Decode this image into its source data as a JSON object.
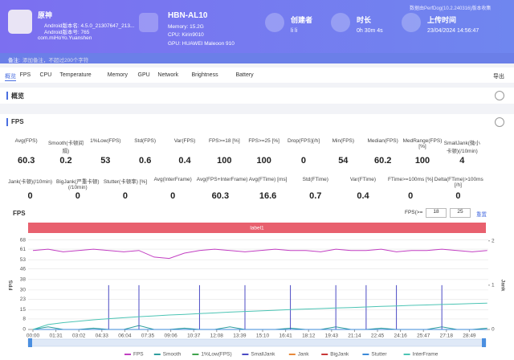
{
  "header": {
    "app_name": "原神",
    "android_version_name": "Android版本名: 4.5.0_21307647_213...",
    "android_version_code": "Android版本号: 765",
    "package": "com.miHoYo.Yuanshen",
    "device": "HBN-AL10",
    "memory": "Memory: 15.2G",
    "cpu": "CPU: Kirin9010",
    "gpu": "GPU: HUAWEI Maleoon 910",
    "creator_label": "创建者",
    "creator": "li li",
    "duration_label": "时长",
    "duration": "0h 30m 4s",
    "upload_label": "上传时间",
    "upload_time": "23/04/2024 14:56:47",
    "collected_by": "数据由PerfDog(10.2.240316)版本收集",
    "note_label": "备注:",
    "note_placeholder": "添加备注，不超过200个字符"
  },
  "tabs": [
    "概览",
    "FPS",
    "CPU",
    "Temperature",
    "Memory",
    "GPU",
    "Network",
    "Brightness",
    "Battery"
  ],
  "export": "导出",
  "sections": {
    "overview": "概览",
    "fps": "FPS"
  },
  "stats": [
    [
      {
        "label": "Avg(FPS)",
        "value": 60.3
      },
      {
        "label": "Smooth(卡顿间隔)",
        "value": 0.2
      },
      {
        "label": "1%Low(FPS)",
        "value": 53
      },
      {
        "label": "Std(FPS)",
        "value": 0.6
      },
      {
        "label": "Var(FPS)",
        "value": 0.4
      },
      {
        "label": "FPS>=18 [%]",
        "value": 100
      },
      {
        "label": "FPS>=25 [%]",
        "value": 100
      },
      {
        "label": "Drop(FPS)[/h]",
        "value": 0
      },
      {
        "label": "Min(FPS)",
        "value": 54
      },
      {
        "label": "Median(FPS)",
        "value": 60.2
      },
      {
        "label": "MedRange(FPS)[%]",
        "value": 100
      },
      {
        "label": "SmallJank(微小卡顿)(/10min)",
        "value": 4
      }
    ],
    [
      {
        "label": "Jank(卡顿)(/10min)",
        "value": 0
      },
      {
        "label": "BigJank(严重卡顿)(/10min)",
        "value": 0
      },
      {
        "label": "Stutter(卡顿率) [%]",
        "value": 0
      },
      {
        "label": "Avg(InterFrame)",
        "value": 0
      },
      {
        "label": "Avg(FPS+InterFrame)",
        "value": 60.3
      },
      {
        "label": "Avg(FTime) [ms]",
        "value": 16.6
      },
      {
        "label": "Std(FTime)",
        "value": 0.7
      },
      {
        "label": "Var(FTime)",
        "value": 0.4
      },
      {
        "label": "FTime>=100ms [%]",
        "value": 0
      },
      {
        "label": "Delta(FTime)>100ms [/h]",
        "value": 0
      }
    ]
  ],
  "fps_threshold": {
    "label": "FPS(>=",
    "values": [
      18,
      25
    ],
    "reset": "重置"
  },
  "chart_data": {
    "type": "line",
    "title": "FPS",
    "label": "label1",
    "y_label": "FPS",
    "y2_label": "Jank",
    "grid": true,
    "x": [
      0,
      60,
      120,
      180,
      240,
      300,
      360,
      420,
      480,
      540,
      600,
      660,
      720,
      780,
      840,
      900,
      960,
      1020,
      1080,
      1140,
      1200,
      1260,
      1320,
      1380,
      1440,
      1500,
      1560,
      1620,
      1680,
      1740,
      1800
    ],
    "xlim": [
      0,
      1804
    ],
    "xticks": [
      {
        "value": 0,
        "label": "00:00"
      },
      {
        "value": 91,
        "label": "01:31"
      },
      {
        "value": 182,
        "label": "03:02"
      },
      {
        "value": 273,
        "label": "04:33"
      },
      {
        "value": 364,
        "label": "06:04"
      },
      {
        "value": 455,
        "label": "07:35"
      },
      {
        "value": 546,
        "label": "09:06"
      },
      {
        "value": 637,
        "label": "10:37"
      },
      {
        "value": 728,
        "label": "12:08"
      },
      {
        "value": 819,
        "label": "13:39"
      },
      {
        "value": 910,
        "label": "15:10"
      },
      {
        "value": 1001,
        "label": "16:41"
      },
      {
        "value": 1092,
        "label": "18:12"
      },
      {
        "value": 1183,
        "label": "19:43"
      },
      {
        "value": 1274,
        "label": "21:14"
      },
      {
        "value": 1365,
        "label": "22:45"
      },
      {
        "value": 1456,
        "label": "24:16"
      },
      {
        "value": 1547,
        "label": "25:47"
      },
      {
        "value": 1638,
        "label": "27:18"
      },
      {
        "value": 1729,
        "label": "28:49"
      }
    ],
    "ylim": [
      0,
      69
    ],
    "yticks": [
      0,
      8,
      15,
      23,
      30,
      38,
      46,
      53,
      61,
      68
    ],
    "y2lim": [
      0,
      2.05
    ],
    "y2ticks": [
      0,
      1,
      2
    ],
    "series": [
      {
        "name": "FPS",
        "color": "#c23fc2",
        "values": [
          60,
          61,
          59,
          60,
          61,
          60,
          59,
          60,
          55,
          54,
          58,
          60,
          61,
          60,
          59,
          60,
          61,
          60,
          60,
          59,
          61,
          60,
          60,
          61,
          59,
          60,
          60,
          61,
          60,
          59,
          60
        ]
      },
      {
        "name": "Smooth",
        "color": "#2f9e9e",
        "values": [
          0,
          2,
          0,
          0,
          1,
          0,
          0,
          3,
          0,
          0,
          1,
          0,
          0,
          2,
          0,
          0,
          0,
          1,
          0,
          0,
          2,
          0,
          0,
          1,
          0,
          0,
          0,
          2,
          0,
          0,
          1
        ]
      },
      {
        "name": "1%Low(FPS)",
        "color": "#3fa34d",
        "values": [
          null,
          null,
          null,
          null,
          null,
          null,
          null,
          null,
          null,
          null,
          null,
          null,
          null,
          null,
          null,
          null,
          null,
          null,
          null,
          null,
          null,
          null,
          null,
          null,
          null,
          null,
          null,
          null,
          null,
          null,
          null
        ]
      },
      {
        "name": "SmallJank",
        "color": "#4b4bc4",
        "axis": "y2",
        "values": [
          0,
          0,
          0,
          0,
          0,
          1,
          0,
          1,
          0,
          0,
          0,
          1,
          0,
          0,
          1,
          0,
          0,
          1,
          0,
          0,
          1,
          0,
          1,
          0,
          1,
          0,
          0,
          1,
          0,
          0,
          0
        ]
      },
      {
        "name": "Jank",
        "color": "#e8893a",
        "axis": "y2",
        "values": [
          0,
          0,
          0,
          0,
          0,
          0,
          0,
          0,
          0,
          0,
          0,
          0,
          0,
          0,
          0,
          0,
          0,
          0,
          0,
          0,
          0,
          0,
          0,
          0,
          0,
          0,
          0,
          0,
          0,
          0,
          0
        ]
      },
      {
        "name": "BigJank",
        "color": "#c83737",
        "axis": "y2",
        "values": [
          0,
          0,
          0,
          0,
          0,
          0,
          0,
          0,
          0,
          0,
          0,
          0,
          0,
          0,
          0,
          0,
          0,
          0,
          0,
          0,
          0,
          0,
          0,
          0,
          0,
          0,
          0,
          0,
          0,
          0,
          0
        ]
      },
      {
        "name": "Stutter",
        "color": "#3b8ad8",
        "axis": "y2",
        "values": [
          0,
          0,
          0,
          0,
          0,
          0,
          0,
          0,
          0,
          0,
          0,
          0,
          0,
          0,
          0,
          0,
          0,
          0,
          0,
          0,
          0,
          0,
          0,
          0,
          0,
          0,
          0,
          0,
          0,
          0,
          0
        ]
      },
      {
        "name": "InterFrame",
        "color": "#4cc4b4",
        "values": [
          0,
          3.7,
          5.2,
          6.3,
          7.3,
          8.2,
          8.9,
          9.7,
          10.3,
          11,
          11.5,
          12.1,
          12.6,
          13.2,
          13.7,
          14.1,
          14.6,
          15.1,
          15.5,
          15.9,
          16.3,
          16.7,
          17.1,
          17.5,
          17.9,
          18.3,
          18.6,
          19,
          19.3,
          19.7,
          20
        ]
      }
    ]
  }
}
